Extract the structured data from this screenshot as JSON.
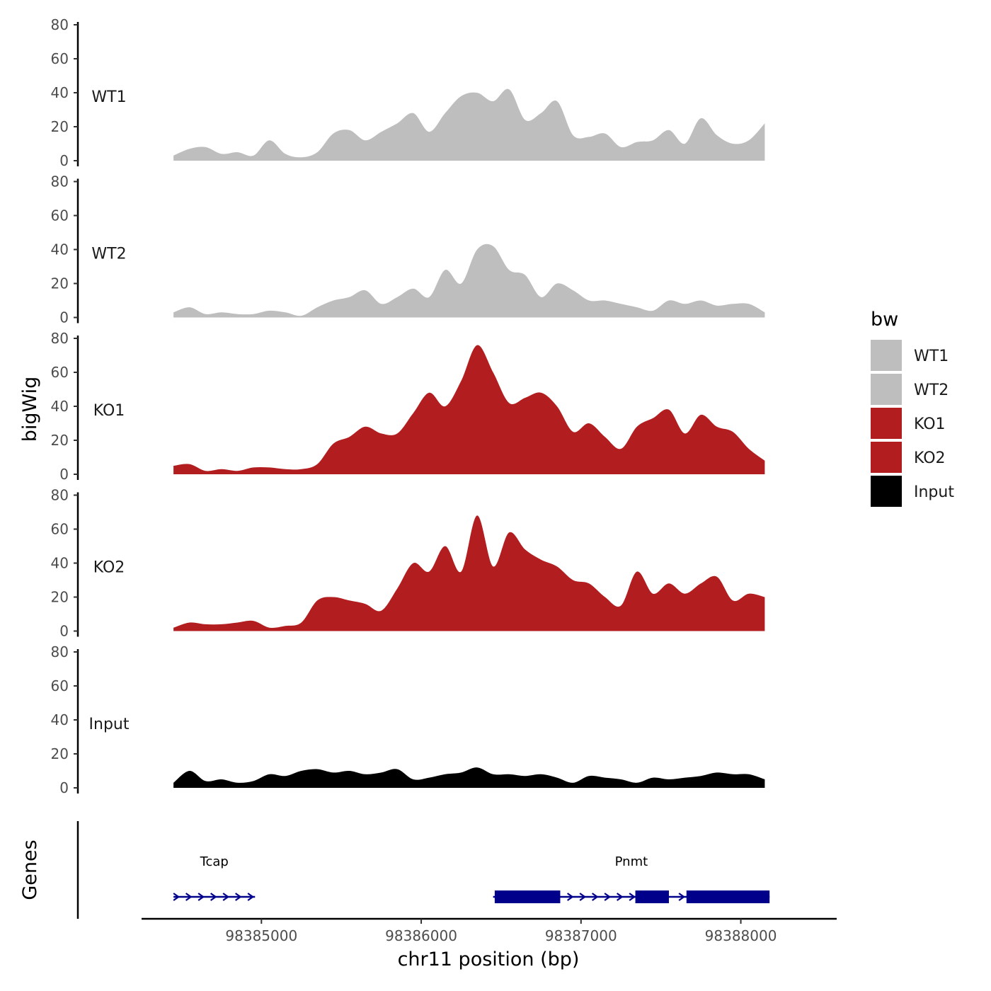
{
  "chart_data": {
    "type": "area",
    "ylabel": "bigWig",
    "xlabel": "chr11 position (bp)",
    "xlim": [
      98384250,
      98388600
    ],
    "x_ticks": [
      98385000,
      98386000,
      98387000,
      98388000
    ],
    "x_tick_labels": [
      "98385000",
      "98386000",
      "98387000",
      "98388000"
    ],
    "ylim": [
      0,
      80
    ],
    "y_ticks": [
      0,
      20,
      40,
      60,
      80
    ],
    "y_tick_labels": [
      "0",
      "20",
      "40",
      "60",
      "80"
    ],
    "legend": {
      "title": "bw",
      "position": "right",
      "entries": [
        {
          "label": "WT1",
          "color": "#BEBEBE"
        },
        {
          "label": "WT2",
          "color": "#BEBEBE"
        },
        {
          "label": "KO1",
          "color": "#B21E1F"
        },
        {
          "label": "KO2",
          "color": "#B21E1F"
        },
        {
          "label": "Input",
          "color": "#000000"
        }
      ]
    },
    "x": [
      98384450,
      98384550,
      98384650,
      98384750,
      98384850,
      98384950,
      98385050,
      98385150,
      98385250,
      98385350,
      98385450,
      98385550,
      98385650,
      98385750,
      98385850,
      98385950,
      98386050,
      98386150,
      98386250,
      98386350,
      98386450,
      98386550,
      98386650,
      98386750,
      98386850,
      98386950,
      98387050,
      98387150,
      98387250,
      98387350,
      98387450,
      98387550,
      98387650,
      98387750,
      98387850,
      98387950,
      98388050,
      98388150
    ],
    "series": [
      {
        "name": "WT1",
        "color": "#BEBEBE",
        "values": [
          3,
          7,
          8,
          4,
          5,
          3,
          12,
          4,
          2,
          5,
          16,
          18,
          12,
          17,
          22,
          28,
          17,
          28,
          38,
          40,
          35,
          42,
          24,
          28,
          35,
          15,
          14,
          16,
          8,
          11,
          12,
          18,
          10,
          25,
          15,
          10,
          12,
          22
        ]
      },
      {
        "name": "WT2",
        "color": "#BEBEBE",
        "values": [
          3,
          6,
          2,
          3,
          2,
          2,
          4,
          3,
          1,
          6,
          10,
          12,
          16,
          8,
          12,
          17,
          12,
          28,
          20,
          40,
          42,
          28,
          25,
          12,
          20,
          16,
          10,
          10,
          8,
          6,
          4,
          10,
          8,
          10,
          7,
          8,
          8,
          3
        ]
      },
      {
        "name": "KO1",
        "color": "#B21E1F",
        "values": [
          5,
          6,
          2,
          3,
          2,
          4,
          4,
          3,
          3,
          6,
          18,
          22,
          28,
          24,
          24,
          36,
          48,
          40,
          55,
          76,
          60,
          42,
          45,
          48,
          40,
          25,
          30,
          22,
          15,
          28,
          33,
          38,
          24,
          35,
          28,
          25,
          15,
          8
        ]
      },
      {
        "name": "KO2",
        "color": "#B21E1F",
        "values": [
          2,
          5,
          4,
          4,
          5,
          6,
          2,
          3,
          5,
          18,
          20,
          18,
          16,
          12,
          25,
          40,
          35,
          50,
          35,
          68,
          38,
          58,
          48,
          42,
          38,
          30,
          28,
          20,
          15,
          35,
          22,
          28,
          22,
          28,
          32,
          18,
          22,
          20
        ]
      },
      {
        "name": "Input",
        "color": "#000000",
        "values": [
          3,
          10,
          4,
          5,
          3,
          4,
          8,
          7,
          10,
          11,
          9,
          10,
          8,
          9,
          11,
          5,
          6,
          8,
          9,
          12,
          8,
          8,
          7,
          8,
          6,
          3,
          7,
          6,
          5,
          3,
          6,
          5,
          6,
          7,
          9,
          8,
          8,
          5
        ]
      }
    ],
    "genes": {
      "track_title": "Genes",
      "color": "#00008B",
      "items": [
        {
          "name": "Tcap",
          "start": 98384450,
          "end": 98384960,
          "strand": "+",
          "exons": []
        },
        {
          "name": "Pnmt",
          "start": 98386450,
          "end": 98388180,
          "strand": "+",
          "exons": [
            [
              98386460,
              98386760
            ],
            [
              98386720,
              98386870
            ],
            [
              98387340,
              98387550
            ],
            [
              98387660,
              98388180
            ]
          ]
        }
      ]
    }
  }
}
